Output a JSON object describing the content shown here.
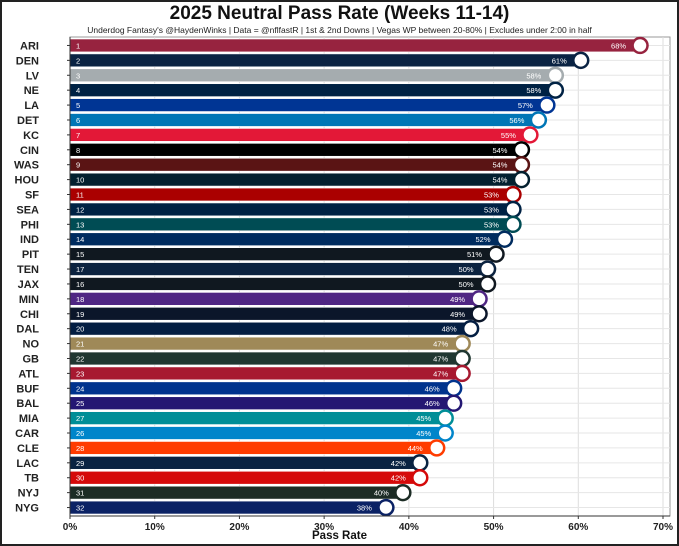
{
  "chart_data": {
    "type": "bar",
    "orientation": "horizontal",
    "title": "2025 Neutral Pass Rate (Weeks 11-14)",
    "subtitle": "Underdog Fantasy's @HaydenWinks | Data = @nflfastR | 1st & 2nd Downs | Vegas WP between 20-80% | Excludes under 2:00 in half",
    "xlabel": "Pass Rate",
    "ylabel": "",
    "xlim": [
      0,
      0.7
    ],
    "x_ticks": [
      0,
      0.1,
      0.2,
      0.3,
      0.4,
      0.5,
      0.6,
      0.7
    ],
    "x_tick_labels": [
      "0%",
      "10%",
      "20%",
      "30%",
      "40%",
      "50%",
      "60%",
      "70%"
    ],
    "grid": true,
    "bars": [
      {
        "team": "ARI",
        "rank": "1",
        "value": 0.68,
        "label": "68%",
        "color": "#97233F"
      },
      {
        "team": "DEN",
        "rank": "2",
        "value": 0.61,
        "label": "61%",
        "color": "#0A2343"
      },
      {
        "team": "LV",
        "rank": "3",
        "value": 0.58,
        "label": "58%",
        "color": "#A5ACAF"
      },
      {
        "team": "NE",
        "rank": "4",
        "value": 0.58,
        "label": "58%",
        "color": "#002244"
      },
      {
        "team": "LA",
        "rank": "5",
        "value": 0.57,
        "label": "57%",
        "color": "#003594"
      },
      {
        "team": "DET",
        "rank": "6",
        "value": 0.56,
        "label": "56%",
        "color": "#0076B6"
      },
      {
        "team": "KC",
        "rank": "7",
        "value": 0.55,
        "label": "55%",
        "color": "#E31837"
      },
      {
        "team": "CIN",
        "rank": "8",
        "value": 0.54,
        "label": "54%",
        "color": "#000000"
      },
      {
        "team": "WAS",
        "rank": "9",
        "value": 0.54,
        "label": "54%",
        "color": "#5A1414"
      },
      {
        "team": "HOU",
        "rank": "10",
        "value": 0.54,
        "label": "54%",
        "color": "#03202F"
      },
      {
        "team": "SF",
        "rank": "11",
        "value": 0.53,
        "label": "53%",
        "color": "#AA0000"
      },
      {
        "team": "SEA",
        "rank": "12",
        "value": 0.53,
        "label": "53%",
        "color": "#002244"
      },
      {
        "team": "PHI",
        "rank": "13",
        "value": 0.53,
        "label": "53%",
        "color": "#004C54"
      },
      {
        "team": "IND",
        "rank": "14",
        "value": 0.52,
        "label": "52%",
        "color": "#002C5F"
      },
      {
        "team": "PIT",
        "rank": "15",
        "value": 0.51,
        "label": "51%",
        "color": "#101820"
      },
      {
        "team": "TEN",
        "rank": "17",
        "value": 0.5,
        "label": "50%",
        "color": "#0C2340"
      },
      {
        "team": "JAX",
        "rank": "16",
        "value": 0.5,
        "label": "50%",
        "color": "#101820"
      },
      {
        "team": "MIN",
        "rank": "18",
        "value": 0.49,
        "label": "49%",
        "color": "#4F2683"
      },
      {
        "team": "CHI",
        "rank": "19",
        "value": 0.49,
        "label": "49%",
        "color": "#0B162A"
      },
      {
        "team": "DAL",
        "rank": "20",
        "value": 0.48,
        "label": "48%",
        "color": "#041E42"
      },
      {
        "team": "NO",
        "rank": "21",
        "value": 0.47,
        "label": "47%",
        "color": "#9F8958"
      },
      {
        "team": "GB",
        "rank": "22",
        "value": 0.47,
        "label": "47%",
        "color": "#203731"
      },
      {
        "team": "ATL",
        "rank": "23",
        "value": 0.47,
        "label": "47%",
        "color": "#A71930"
      },
      {
        "team": "BUF",
        "rank": "24",
        "value": 0.46,
        "label": "46%",
        "color": "#00338D"
      },
      {
        "team": "BAL",
        "rank": "25",
        "value": 0.46,
        "label": "46%",
        "color": "#241773"
      },
      {
        "team": "MIA",
        "rank": "27",
        "value": 0.45,
        "label": "45%",
        "color": "#008E97"
      },
      {
        "team": "CAR",
        "rank": "26",
        "value": 0.45,
        "label": "45%",
        "color": "#0085CA"
      },
      {
        "team": "CLE",
        "rank": "28",
        "value": 0.44,
        "label": "44%",
        "color": "#FF3C00"
      },
      {
        "team": "LAC",
        "rank": "29",
        "value": 0.42,
        "label": "42%",
        "color": "#0A2342"
      },
      {
        "team": "TB",
        "rank": "30",
        "value": 0.42,
        "label": "42%",
        "color": "#D50A0A"
      },
      {
        "team": "NYJ",
        "rank": "31",
        "value": 0.4,
        "label": "40%",
        "color": "#1C2C25"
      },
      {
        "team": "NYG",
        "rank": "32",
        "value": 0.38,
        "label": "38%",
        "color": "#0B2265"
      }
    ]
  }
}
